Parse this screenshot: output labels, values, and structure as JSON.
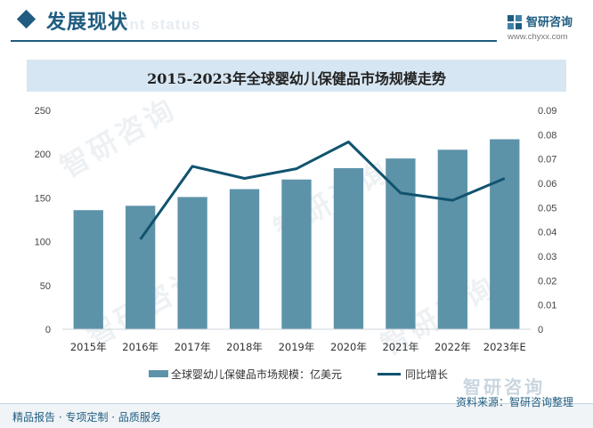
{
  "header": {
    "section_title": "发展现状",
    "section_subtitle": "ent status",
    "brand_name": "智研咨询",
    "brand_site": "www.chyxx.com"
  },
  "chart_data": {
    "type": "bar",
    "title": "2015-2023年全球婴幼儿保健品市场规模走势",
    "categories": [
      "2015年",
      "2016年",
      "2017年",
      "2018年",
      "2019年",
      "2020年",
      "2021年",
      "2022年",
      "2023年E"
    ],
    "series": [
      {
        "name": "全球婴幼儿保健品市场规模：亿美元",
        "type": "bar",
        "axis": "left",
        "color": "#5d93a9",
        "values": [
          136,
          141,
          151,
          160,
          171,
          184,
          195,
          205,
          217
        ]
      },
      {
        "name": "同比增长",
        "type": "line",
        "axis": "right",
        "color": "#11536f",
        "values": [
          null,
          0.037,
          0.067,
          0.062,
          0.066,
          0.077,
          0.056,
          0.053,
          0.062
        ]
      }
    ],
    "y_left": {
      "min": 0,
      "max": 250,
      "ticks": [
        "0",
        "50",
        "100",
        "150",
        "200",
        "250"
      ]
    },
    "y_right": {
      "min": 0,
      "max": 0.09,
      "ticks": [
        "0",
        "0.01",
        "0.02",
        "0.03",
        "0.04",
        "0.05",
        "0.06",
        "0.07",
        "0.08",
        "0.09"
      ]
    },
    "grid": false,
    "legend_position": "bottom"
  },
  "watermark": "智研咨询",
  "footer": {
    "left": "精品报告 · 专项定制 · 品质服务",
    "source": "资料来源：智研咨询整理",
    "brand": "智研咨询"
  }
}
